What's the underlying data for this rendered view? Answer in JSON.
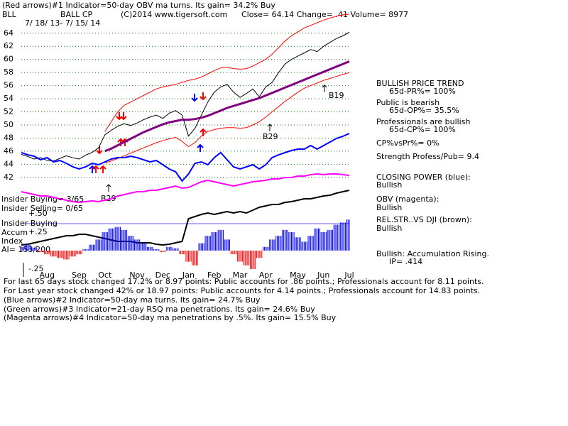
{
  "header": {
    "line1": "(Red arrows)#1 Indicator=50-day OBV ma turns. Its gain= 34.2% Buy",
    "symbol": "BLL",
    "company": "BALL CP",
    "copyright": "(C)2014 www.tigersoft.com",
    "quote": "Close=  64.14  Change=  .41 Volume= 8977",
    "dates": "7/ 18/ 13-  7/ 15/ 14"
  },
  "annotations": [
    "B29",
    "B29",
    "B19"
  ],
  "side_panel": [
    "BULLISH PRICE TREND",
    "65d-PR%= 100%",
    "Public is bearish",
    "65d-OP%= 35.5%",
    "Professionals are bullish",
    "65d-CP%= 100%",
    "CP%vsPr%=  0%",
    "Strength Profess/Pub= 9.4",
    "CLOSING POWER (blue):",
    "Bullish",
    "OBV (magenta):",
    "Bullish",
    "REL.STR..VS DJI (brown):",
    "Bullish",
    "Bullish: Accumulation Rising.",
    "IP=  .414"
  ],
  "insider": [
    "Insider Buying= 3/65",
    "Insider Selling= 0/65",
    "Insider Buying",
    "Accum",
    "Index",
    "AI= 153/200"
  ],
  "footer": [
    "For last 65 days stock changed  17.2% or  8.97 points:  Public accounts for  .86 points.;  Professionals account for  8.11 points.",
    "For Last year stock changed  42% or  18.97 points:  Public accounts for  4.14 points.;  Professionals account for  14.83 points.",
    "(Blue arrows)#2 Indicator=50-day ma turns. Its gain= 24.7% Buy",
    "(Green arrows)#3 Indicator=21-day RSQ ma penetrations. Its gain= 24.6% Buy",
    "(Magenta arrows)#4 Indicator=50-day ma penetrations by .5%. Its gain= 15.5% Buy"
  ],
  "chart_data": [
    {
      "type": "line",
      "ylim": [
        27.9,
        66.9
      ],
      "yticks": [
        42,
        44,
        46,
        48,
        50,
        52,
        54,
        56,
        58,
        60,
        62,
        64
      ],
      "grid": true,
      "grid_color": "#008000",
      "categories": [
        null,
        null,
        null,
        null,
        "Aug",
        null,
        null,
        null,
        null,
        "Sep",
        null,
        null,
        null,
        "Oct",
        null,
        null,
        null,
        null,
        "Nov",
        null,
        null,
        null,
        "Dec",
        null,
        null,
        null,
        "Jan",
        null,
        null,
        null,
        "Feb",
        null,
        null,
        null,
        "Mar",
        null,
        null,
        null,
        "Apr",
        null,
        null,
        null,
        null,
        "May",
        null,
        null,
        null,
        "Jun",
        null,
        null,
        null,
        "Jul"
      ],
      "series": [
        {
          "color": "#000000",
          "width": 1,
          "values": [
            45.5,
            45.2,
            44.8,
            45.0,
            44.6,
            44.5,
            44.9,
            45.3,
            45.0,
            44.8,
            45.4,
            45.8,
            46.5,
            48.5,
            49.2,
            49.8,
            50.2,
            49.9,
            50.3,
            50.8,
            51.2,
            51.5,
            51.0,
            51.8,
            52.2,
            51.5,
            48.3,
            49.5,
            51.5,
            53.5,
            55.0,
            55.8,
            56.2,
            55.0,
            54.2,
            54.8,
            55.5,
            54.3,
            55.8,
            56.5,
            58.0,
            59.3,
            60.0,
            60.5,
            61.0,
            61.5,
            61.2,
            62.0,
            62.6,
            63.2,
            63.6,
            64.14
          ]
        },
        {
          "color": "#800080",
          "width": 3,
          "values": [
            null,
            null,
            null,
            null,
            null,
            null,
            null,
            null,
            null,
            null,
            null,
            null,
            null,
            46.0,
            46.4,
            46.9,
            47.4,
            47.9,
            48.4,
            48.9,
            49.3,
            49.7,
            50.1,
            50.4,
            50.6,
            50.8,
            50.8,
            50.9,
            51.1,
            51.4,
            51.8,
            52.2,
            52.6,
            52.9,
            53.2,
            53.5,
            53.8,
            54.1,
            54.5,
            54.9,
            55.3,
            55.7,
            56.1,
            56.5,
            56.9,
            57.3,
            57.7,
            58.1,
            58.5,
            58.9,
            59.3,
            59.7
          ]
        },
        {
          "color": "#ff0000",
          "width": 1,
          "values": [
            null,
            null,
            null,
            null,
            null,
            null,
            null,
            null,
            null,
            null,
            null,
            null,
            null,
            49.0,
            50.5,
            52.0,
            53.0,
            53.5,
            54.0,
            54.5,
            55.0,
            55.5,
            55.8,
            56.0,
            56.2,
            56.5,
            56.8,
            57.0,
            57.3,
            57.8,
            58.3,
            58.7,
            58.8,
            58.6,
            58.5,
            58.6,
            59.0,
            59.5,
            60.0,
            60.8,
            61.8,
            62.8,
            63.6,
            64.2,
            64.8,
            65.2,
            65.6,
            66.0,
            66.3,
            66.6,
            66.8,
            66.9
          ]
        },
        {
          "color": "#ff0000",
          "width": 1,
          "values": [
            null,
            null,
            null,
            null,
            null,
            null,
            null,
            null,
            null,
            null,
            null,
            null,
            null,
            44.2,
            44.5,
            44.9,
            45.3,
            45.7,
            46.1,
            46.5,
            46.9,
            47.3,
            47.6,
            47.9,
            48.1,
            47.5,
            46.7,
            47.3,
            48.3,
            49.0,
            49.3,
            49.5,
            49.6,
            49.6,
            49.5,
            49.6,
            50.0,
            50.5,
            51.2,
            52.0,
            52.8,
            53.6,
            54.3,
            55.0,
            55.6,
            56.0,
            56.4,
            56.8,
            57.1,
            57.4,
            57.7,
            58.0
          ]
        }
      ]
    },
    {
      "type": "line",
      "ylim": [
        0,
        360
      ],
      "series": [
        {
          "color": "#0000ff",
          "width": 2,
          "values": [
            165,
            162,
            160,
            155,
            158,
            152,
            154,
            150,
            145,
            142,
            145,
            150,
            148,
            152,
            156,
            158,
            158,
            160,
            158,
            155,
            152,
            154,
            148,
            142,
            138,
            125,
            135,
            150,
            152,
            148,
            158,
            165,
            155,
            145,
            142,
            145,
            148,
            142,
            148,
            158,
            162,
            165,
            168,
            170,
            170,
            175,
            170,
            175,
            180,
            185,
            188,
            192
          ]
        },
        {
          "color": "#ff00ff",
          "width": 2,
          "values": [
            110,
            108,
            106,
            104,
            104,
            102,
            100,
            98,
            96,
            95,
            96,
            97,
            96,
            98,
            100,
            104,
            106,
            108,
            110,
            110,
            112,
            112,
            114,
            116,
            118,
            115,
            116,
            120,
            124,
            126,
            124,
            122,
            120,
            118,
            120,
            122,
            124,
            125,
            126,
            128,
            128,
            130,
            130,
            132,
            132,
            134,
            135,
            134,
            135,
            135,
            134,
            133
          ]
        },
        {
          "color": "#000000",
          "width": 2,
          "values": [
            35,
            36,
            38,
            40,
            42,
            44,
            46,
            48,
            48,
            50,
            50,
            48,
            46,
            44,
            42,
            40,
            40,
            40,
            38,
            38,
            38,
            36,
            35,
            36,
            38,
            40,
            72,
            75,
            78,
            80,
            78,
            80,
            82,
            80,
            82,
            80,
            84,
            88,
            90,
            92,
            92,
            95,
            96,
            98,
            100,
            100,
            102,
            104,
            105,
            108,
            110,
            112
          ]
        }
      ]
    },
    {
      "type": "bar",
      "ylim": [
        -0.26,
        3.2
      ],
      "yticks": [
        {
          "value": 0.5,
          "label": "+.50"
        },
        {
          "value": 0.25,
          "label": "+.25"
        },
        {
          "value": -0.25,
          "label": "-.25"
        }
      ],
      "pos_color": "#0000ff",
      "neg_color": "#ff0000",
      "values": [
        0.05,
        0.08,
        0.04,
        -0.02,
        -0.05,
        -0.08,
        -0.1,
        -0.12,
        -0.08,
        -0.05,
        0.02,
        0.08,
        0.15,
        0.25,
        0.3,
        0.32,
        0.28,
        0.2,
        0.15,
        0.1,
        0.05,
        0.02,
        -0.02,
        0.05,
        0.03,
        -0.05,
        -0.15,
        -0.2,
        0.1,
        0.2,
        0.25,
        0.28,
        0.15,
        -0.05,
        -0.15,
        -0.2,
        -0.25,
        -0.1,
        0.05,
        0.15,
        0.2,
        0.28,
        0.25,
        0.18,
        0.12,
        0.2,
        0.3,
        0.25,
        0.28,
        0.35,
        0.38,
        0.42
      ]
    }
  ]
}
